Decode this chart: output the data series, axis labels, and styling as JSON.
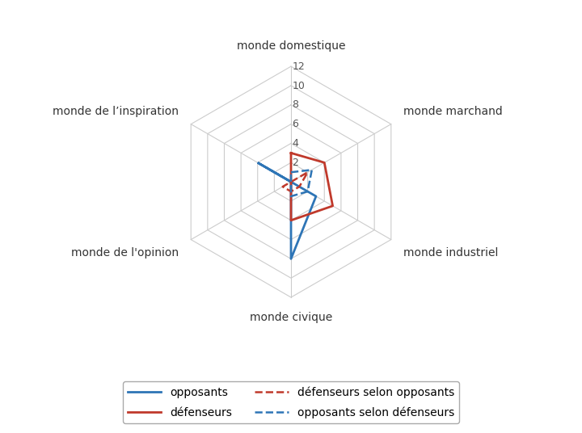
{
  "categories": [
    "monde domestique",
    "monde marchand",
    "monde industriel",
    "monde civique",
    "monde de l'opinion",
    "monde de l’inspiration"
  ],
  "rmax": 12,
  "rticks": [
    2,
    4,
    6,
    8,
    10,
    12
  ],
  "series_order": [
    "opposants",
    "défenseurs",
    "défenseurs selon opposants",
    "opposants selon défenseurs"
  ],
  "series": {
    "opposants": {
      "values": [
        0,
        0,
        3,
        8,
        0,
        4
      ],
      "color": "#2E75B6",
      "linestyle": "solid",
      "linewidth": 2.0
    },
    "défenseurs": {
      "values": [
        3,
        4,
        5,
        4,
        0,
        0
      ],
      "color": "#C0392B",
      "linestyle": "solid",
      "linewidth": 2.0
    },
    "défenseurs selon opposants": {
      "values": [
        0,
        2,
        1,
        1,
        1,
        0
      ],
      "color": "#C0392B",
      "linestyle": "dashed",
      "linewidth": 1.8
    },
    "opposants selon défenseurs": {
      "values": [
        1,
        2.5,
        2,
        1.5,
        0,
        0
      ],
      "color": "#2E75B6",
      "linestyle": "dashed",
      "linewidth": 1.8
    }
  },
  "background_color": "#ffffff",
  "grid_color": "#cccccc",
  "spoke_color": "#cccccc",
  "label_fontsize": 10,
  "tick_fontsize": 9,
  "legend_fontsize": 10
}
